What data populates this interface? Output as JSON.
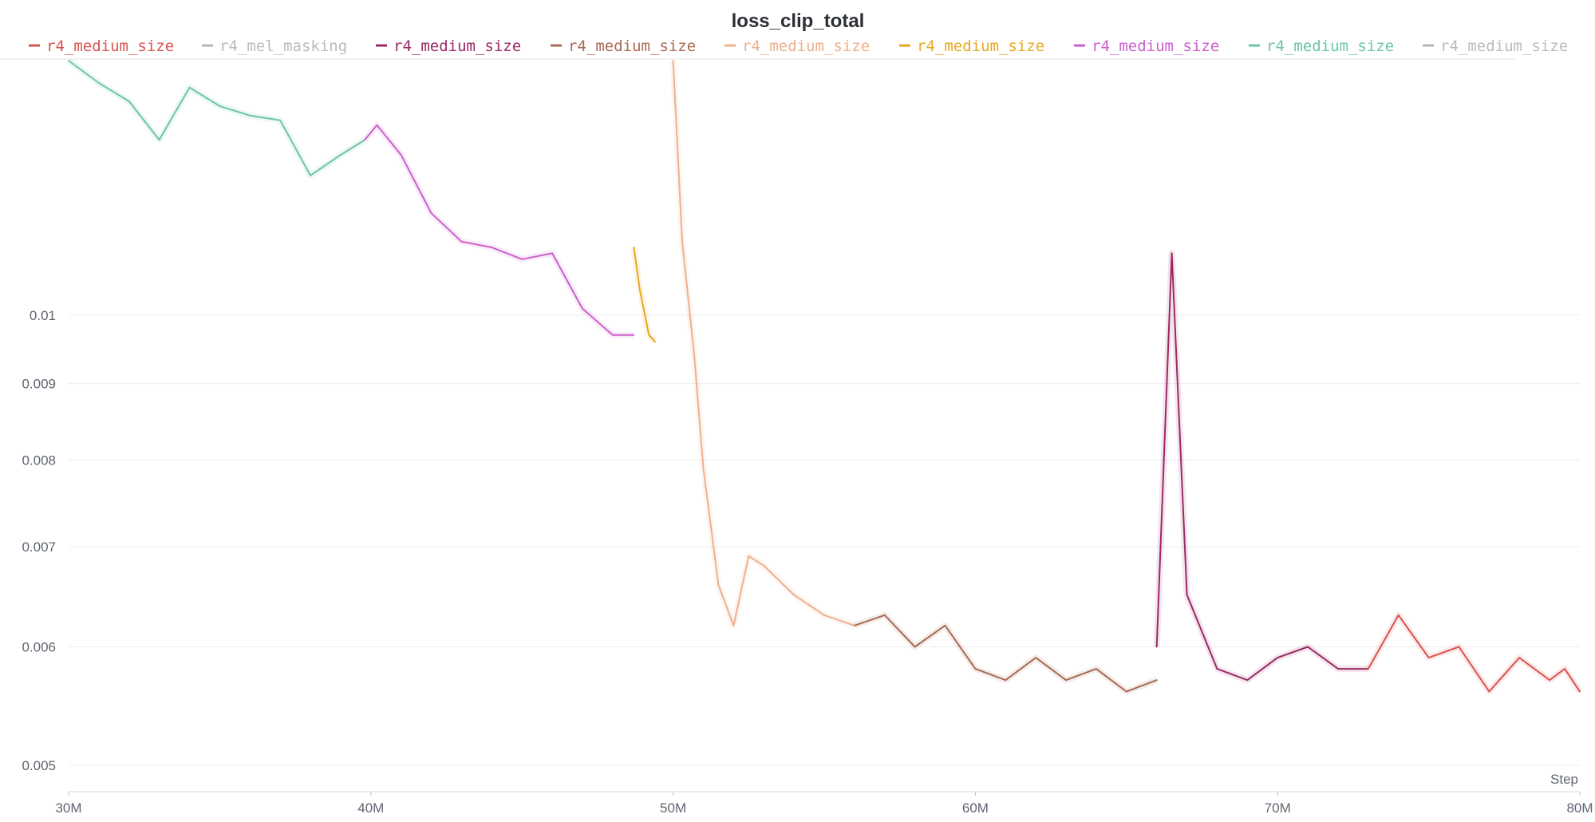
{
  "chart_data": {
    "type": "line",
    "title": "loss_clip_total",
    "xlabel": "Step",
    "ylabel": "",
    "y_scale": "log",
    "xlim": [
      30000000,
      80000000
    ],
    "ylim": [
      0.0048,
      0.0148
    ],
    "grid": true,
    "legend_position": "top",
    "x_ticks": [
      {
        "value": 30000000,
        "label": "30M"
      },
      {
        "value": 40000000,
        "label": "40M"
      },
      {
        "value": 50000000,
        "label": "50M"
      },
      {
        "value": 60000000,
        "label": "60M"
      },
      {
        "value": 70000000,
        "label": "70M"
      },
      {
        "value": 80000000,
        "label": "80M"
      }
    ],
    "y_ticks": [
      {
        "value": 0.005,
        "label": "0.005"
      },
      {
        "value": 0.006,
        "label": "0.006"
      },
      {
        "value": 0.007,
        "label": "0.007"
      },
      {
        "value": 0.008,
        "label": "0.008"
      },
      {
        "value": 0.009,
        "label": "0.009"
      },
      {
        "value": 0.01,
        "label": "0.01"
      }
    ],
    "legend": [
      {
        "name": "r4_medium_size",
        "color": "#d9534f",
        "active": true
      },
      {
        "name": "r4_mel_masking",
        "color": "#b4b4b4",
        "active": false
      },
      {
        "name": "r4_medium_size",
        "color": "#9b2a66",
        "active": true
      },
      {
        "name": "r4_medium_size",
        "color": "#a86a55",
        "active": true
      },
      {
        "name": "r4_medium_size",
        "color": "#eeb08e",
        "active": true
      },
      {
        "name": "r4_medium_size",
        "color": "#e6a91f",
        "active": true
      },
      {
        "name": "r4_medium_size",
        "color": "#cc5fcc",
        "active": true
      },
      {
        "name": "r4_medium_size",
        "color": "#6cc4ad",
        "active": true
      },
      {
        "name": "r4_medium_size",
        "color": "#b4b4b4",
        "active": false
      }
    ],
    "series": [
      {
        "color": "#6cc4ad",
        "x": [
          30000000,
          31000000,
          32000000,
          33000000,
          34000000,
          35000000,
          36000000,
          37000000,
          38000000,
          39000000,
          39800000
        ],
        "values": [
          0.0148,
          0.0143,
          0.0139,
          0.0131,
          0.0142,
          0.0138,
          0.0136,
          0.0135,
          0.0124,
          0.0128,
          0.0131
        ]
      },
      {
        "color": "#cc5fcc",
        "x": [
          39800000,
          40200000,
          41000000,
          42000000,
          43000000,
          44000000,
          45000000,
          46000000,
          47000000,
          48000000,
          48700000
        ],
        "values": [
          0.0131,
          0.0134,
          0.0128,
          0.0117,
          0.0112,
          0.0111,
          0.0109,
          0.011,
          0.0101,
          0.0097,
          0.0097
        ]
      },
      {
        "color": "#e6a91f",
        "x": [
          48700000,
          48900000,
          49200000,
          49400000
        ],
        "values": [
          0.0111,
          0.0104,
          0.0097,
          0.0096
        ]
      },
      {
        "color": "#eeb08e",
        "x": [
          50000000,
          50300000,
          50700000,
          51000000,
          51500000,
          52000000,
          52500000,
          53000000,
          54000000,
          55000000,
          56000000
        ],
        "values": [
          0.0148,
          0.0112,
          0.0094,
          0.0079,
          0.0066,
          0.0062,
          0.0069,
          0.0068,
          0.0065,
          0.0063,
          0.0062
        ]
      },
      {
        "color": "#a86a55",
        "x": [
          56000000,
          57000000,
          58000000,
          59000000,
          60000000,
          61000000,
          62000000,
          63000000,
          64000000,
          65000000,
          66000000
        ],
        "values": [
          0.0062,
          0.0063,
          0.006,
          0.0062,
          0.0058,
          0.0057,
          0.0059,
          0.0057,
          0.0058,
          0.0056,
          0.0057
        ]
      },
      {
        "color": "#9b2a66",
        "x": [
          66000000,
          66500000,
          67000000,
          68000000,
          69000000,
          70000000,
          71000000,
          72000000,
          73000000
        ],
        "values": [
          0.006,
          0.011,
          0.0065,
          0.0058,
          0.0057,
          0.0059,
          0.006,
          0.0058,
          0.0058
        ]
      },
      {
        "color": "#d9534f",
        "x": [
          73000000,
          74000000,
          75000000,
          76000000,
          77000000,
          78000000,
          79000000,
          79500000,
          80000000
        ],
        "values": [
          0.0058,
          0.0063,
          0.0059,
          0.006,
          0.0056,
          0.0059,
          0.0057,
          0.0058,
          0.0056
        ]
      }
    ]
  }
}
